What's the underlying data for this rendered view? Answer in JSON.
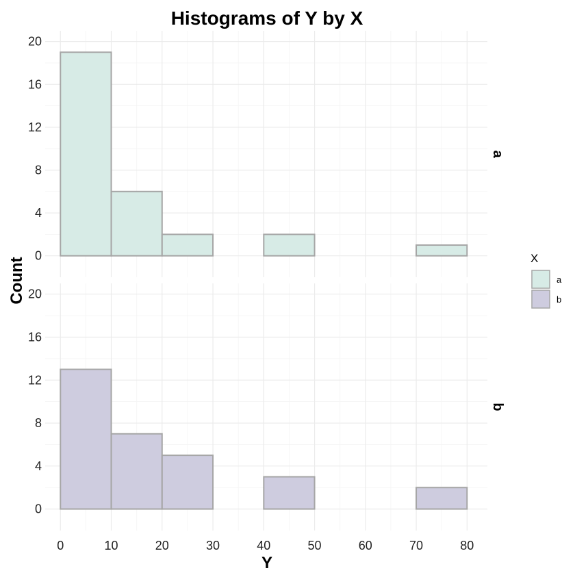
{
  "chart_data": {
    "type": "bar",
    "title": "Histograms of Y by X",
    "xlabel": "Y",
    "ylabel": "Count",
    "xlim": [
      -3,
      84
    ],
    "ylim": [
      -2,
      21
    ],
    "x_ticks": [
      0,
      10,
      20,
      30,
      40,
      50,
      60,
      70,
      80
    ],
    "y_ticks": [
      0,
      4,
      8,
      12,
      16,
      20
    ],
    "bin_edges": [
      0,
      10,
      20,
      30,
      40,
      50,
      60,
      70,
      80
    ],
    "legend": {
      "title": "X",
      "position": "right"
    },
    "grid": true,
    "facet": "rows",
    "series": [
      {
        "name": "a",
        "color": "#d7ebe6",
        "values": [
          19,
          6,
          2,
          0,
          2,
          0,
          0,
          1
        ]
      },
      {
        "name": "b",
        "color": "#ceccdf",
        "values": [
          13,
          7,
          5,
          0,
          3,
          0,
          0,
          2
        ]
      }
    ]
  }
}
